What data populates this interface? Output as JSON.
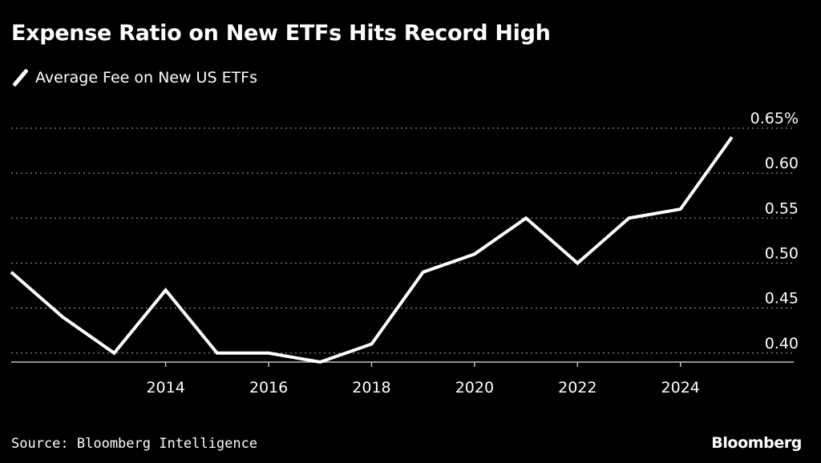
{
  "chart_data": {
    "type": "line",
    "title": "Expense Ratio on New ETFs Hits Record High",
    "legend_position": "top-left",
    "series": [
      {
        "name": "Average Fee on New US ETFs",
        "color": "#ffffff",
        "x": [
          2011,
          2012,
          2013,
          2014,
          2015,
          2016,
          2017,
          2018,
          2019,
          2020,
          2021,
          2022,
          2023,
          2024,
          2025
        ],
        "values": [
          0.49,
          0.44,
          0.4,
          0.47,
          0.4,
          0.4,
          0.39,
          0.41,
          0.49,
          0.51,
          0.55,
          0.5,
          0.55,
          0.56,
          0.64
        ]
      }
    ],
    "x_ticks": [
      "2014",
      "2016",
      "2018",
      "2020",
      "2022",
      "2024"
    ],
    "y_ticks": [
      "0.40",
      "0.45",
      "0.50",
      "0.55",
      "0.60",
      "0.65%"
    ],
    "xlim": [
      2011,
      2026.2
    ],
    "ylim": [
      0.39,
      0.65
    ],
    "grid": "horizontal dotted",
    "background": "#000000",
    "text_color": "#ffffff"
  },
  "footer": {
    "source": "Source: Bloomberg Intelligence",
    "brand": "Bloomberg"
  }
}
